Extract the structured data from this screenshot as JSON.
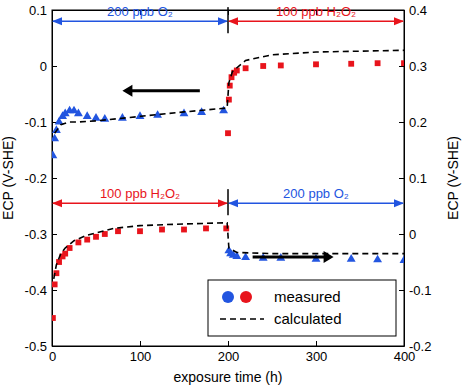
{
  "chart_data": {
    "type": "scatter",
    "x_label": "exposure time  (h)",
    "y_label": "ECP (V-SHE)",
    "y2_label": "ECP (V-SHE)",
    "xlim": [
      0,
      400
    ],
    "xticks": [
      0,
      100,
      200,
      300,
      400
    ],
    "ylim": [
      -0.5,
      0.1
    ],
    "yticks": [
      -0.5,
      -0.4,
      -0.3,
      -0.2,
      -0.1,
      0,
      0.1
    ],
    "y2lim": [
      -0.2,
      0.4
    ],
    "y2ticks": [
      -0.2,
      -0.1,
      0,
      0.1,
      0.2,
      0.3,
      0.4
    ],
    "legend": "lower right",
    "series": [
      {
        "name": "measured",
        "type": "scatter",
        "marker": "triangle",
        "color": "#2255e0",
        "axis": "y",
        "x": [
          1,
          3,
          5,
          8,
          12,
          15,
          20,
          25,
          30,
          40,
          50,
          60,
          80,
          100,
          120,
          150,
          170,
          195
        ],
        "values": [
          -0.16,
          -0.13,
          -0.115,
          -0.1,
          -0.09,
          -0.085,
          -0.08,
          -0.08,
          -0.085,
          -0.09,
          -0.093,
          -0.095,
          -0.093,
          -0.09,
          -0.088,
          -0.085,
          -0.083,
          -0.08
        ]
      },
      {
        "name": "measured",
        "type": "scatter",
        "marker": "square",
        "color": "#e8141c",
        "axis": "y",
        "x": [
          200,
          201,
          202,
          204,
          207,
          210,
          220,
          240,
          260,
          300,
          340,
          370,
          400
        ],
        "values": [
          -0.12,
          -0.06,
          -0.035,
          -0.02,
          -0.012,
          -0.008,
          -0.004,
          0.0,
          0.001,
          0.003,
          0.004,
          0.005,
          0.005
        ]
      },
      {
        "name": "measured",
        "type": "scatter",
        "marker": "square",
        "color": "#e8141c",
        "axis": "y2",
        "x": [
          1,
          3,
          5,
          8,
          12,
          15,
          20,
          30,
          40,
          50,
          60,
          75,
          100,
          125,
          150,
          175,
          198
        ],
        "values": [
          -0.15,
          -0.09,
          -0.07,
          -0.05,
          -0.04,
          -0.035,
          -0.025,
          -0.015,
          -0.01,
          -0.005,
          0.0,
          0.005,
          0.005,
          0.008,
          0.008,
          0.01,
          0.01
        ]
      },
      {
        "name": "measured",
        "type": "scatter",
        "marker": "triangle",
        "color": "#2255e0",
        "axis": "y2",
        "x": [
          201,
          203,
          206,
          210,
          220,
          240,
          260,
          300,
          340,
          370,
          400
        ],
        "values": [
          -0.03,
          -0.035,
          -0.038,
          -0.04,
          -0.042,
          -0.043,
          -0.043,
          -0.045,
          -0.045,
          -0.046,
          -0.047
        ]
      },
      {
        "name": "calculated",
        "type": "line",
        "line_style": "dashed",
        "color": "#000000",
        "axis": "y",
        "x": [
          3,
          10,
          20,
          30,
          50,
          100,
          150,
          199,
          201,
          205,
          220,
          250,
          300,
          400
        ],
        "values": [
          -0.12,
          -0.105,
          -0.1,
          -0.1,
          -0.098,
          -0.09,
          -0.082,
          -0.075,
          -0.03,
          -0.01,
          0.01,
          0.02,
          0.025,
          0.028
        ]
      },
      {
        "name": "calculated",
        "type": "line",
        "line_style": "dashed",
        "color": "#000000",
        "axis": "y2",
        "x": [
          2,
          5,
          10,
          15,
          25,
          40,
          70,
          100,
          150,
          199,
          201,
          210,
          250,
          300,
          400
        ],
        "values": [
          -0.08,
          -0.055,
          -0.035,
          -0.025,
          -0.012,
          -0.002,
          0.01,
          0.015,
          0.018,
          0.02,
          -0.025,
          -0.033,
          -0.035,
          -0.035,
          -0.035
        ]
      }
    ],
    "annotations": [
      {
        "text": "200 ppb O₂",
        "x": [
          0,
          200
        ],
        "y": 0.08,
        "color": "#2255e0"
      },
      {
        "text": "100 ppb H₂O₂",
        "x": [
          200,
          400
        ],
        "y": 0.08,
        "color": "#e8141c"
      },
      {
        "text": "100 ppb H₂O₂",
        "x": [
          0,
          200
        ],
        "y": -0.245,
        "color": "#e8141c"
      },
      {
        "text": "200 ppb O₂",
        "x": [
          200,
          400
        ],
        "y": -0.245,
        "color": "#2255e0"
      }
    ]
  }
}
